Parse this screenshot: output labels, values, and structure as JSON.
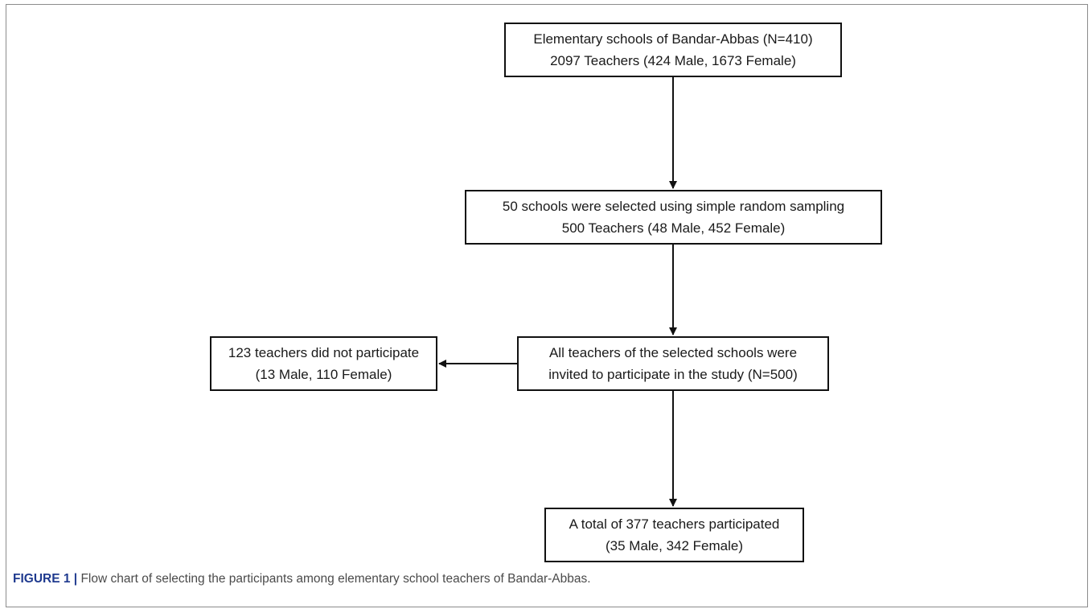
{
  "flowchart": {
    "nodes": [
      {
        "id": "schools",
        "lines": [
          "Elementary schools of Bandar-Abbas (N=410)",
          "2097 Teachers (424 Male, 1673 Female)"
        ]
      },
      {
        "id": "selected",
        "lines": [
          "50 schools were selected using simple random sampling",
          "500 Teachers (48 Male, 452 Female)"
        ]
      },
      {
        "id": "invited",
        "lines": [
          "All teachers of the selected schools were",
          "invited to participate in the study (N=500)"
        ]
      },
      {
        "id": "excluded",
        "lines": [
          "123 teachers did not participate",
          "(13 Male, 110 Female)"
        ]
      },
      {
        "id": "participated",
        "lines": [
          "A total of 377 teachers participated",
          "(35 Male, 342 Female)"
        ]
      }
    ],
    "edges": [
      {
        "from": "schools",
        "to": "selected"
      },
      {
        "from": "selected",
        "to": "invited"
      },
      {
        "from": "invited",
        "to": "excluded"
      },
      {
        "from": "invited",
        "to": "participated"
      }
    ]
  },
  "caption": {
    "label": "FIGURE 1 |",
    "text": " Flow chart of selecting the participants among elementary school teachers of Bandar-Abbas."
  },
  "colors": {
    "caption_label": "#1f3a8f",
    "border": "#111111"
  }
}
